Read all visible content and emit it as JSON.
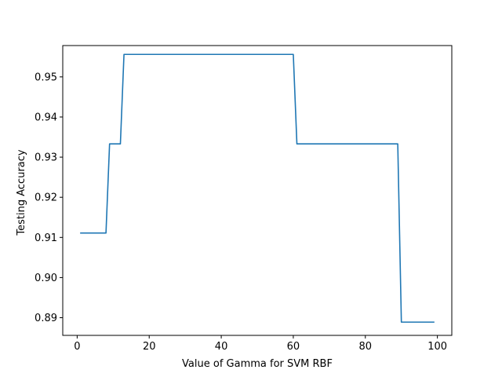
{
  "chart_data": {
    "type": "line",
    "title": "",
    "xlabel": "Value of Gamma for SVM RBF",
    "ylabel": "Testing Accuracy",
    "xlim": [
      -4,
      104
    ],
    "ylim": [
      0.8856,
      0.9578
    ],
    "grid": false,
    "line_color": "#1f77b4",
    "xticks": [
      0,
      20,
      40,
      60,
      80,
      100
    ],
    "xtick_labels": [
      "0",
      "20",
      "40",
      "60",
      "80",
      "100"
    ],
    "yticks": [
      0.89,
      0.9,
      0.91,
      0.92,
      0.93,
      0.94,
      0.95
    ],
    "ytick_labels": [
      "0.89",
      "0.90",
      "0.91",
      "0.92",
      "0.93",
      "0.94",
      "0.95"
    ],
    "series": [
      {
        "x": [
          1,
          8,
          9,
          12,
          13,
          60,
          61,
          89,
          90,
          99
        ],
        "y": [
          0.9111,
          0.9111,
          0.9333,
          0.9333,
          0.9556,
          0.9556,
          0.9333,
          0.9333,
          0.8889,
          0.8889
        ]
      }
    ]
  }
}
